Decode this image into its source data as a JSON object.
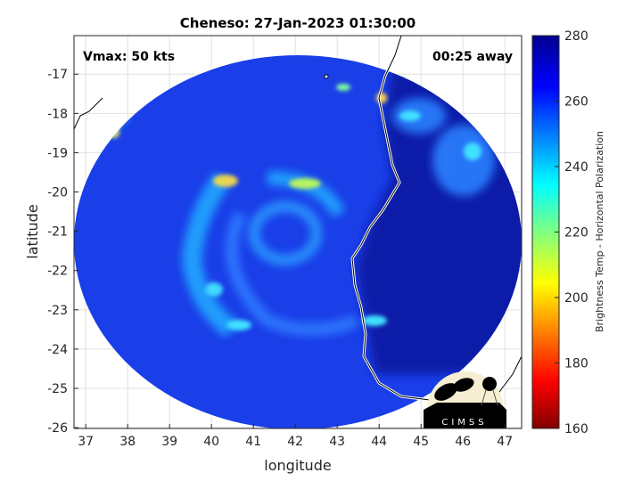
{
  "title": "Cheneso: 27-Jan-2023 01:30:00",
  "annotations": {
    "vmax": "Vmax: 50 kts",
    "time_away": "00:25 away"
  },
  "axes": {
    "xlabel": "longitude",
    "ylabel": "latitude",
    "xlim": [
      36.72,
      47.4
    ],
    "ylim": [
      -26.02,
      -16.02
    ],
    "xticks": [
      "37",
      "38",
      "39",
      "40",
      "41",
      "42",
      "43",
      "44",
      "45",
      "46",
      "47"
    ],
    "yticks": [
      "-17",
      "-18",
      "-19",
      "-20",
      "-21",
      "-22",
      "-23",
      "-24",
      "-25",
      "-26"
    ],
    "grid": true
  },
  "colorbar": {
    "label": "Brightness Temp - Horizontal Polarization",
    "ticks": [
      "160",
      "180",
      "200",
      "220",
      "240",
      "260",
      "280"
    ],
    "range": [
      160,
      280
    ],
    "colormap": "jet"
  },
  "logo": {
    "text": "CIMSS"
  }
}
